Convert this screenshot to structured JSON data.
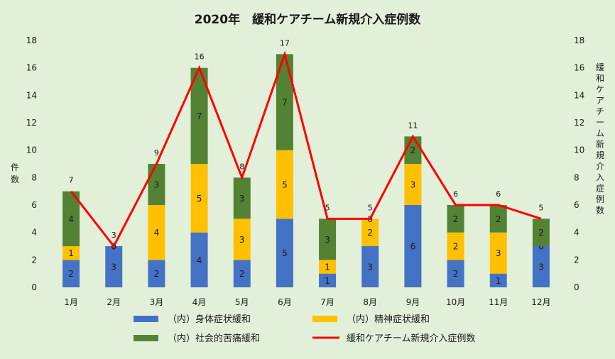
{
  "chart_data": {
    "type": "bar",
    "title": "2020年　緩和ケアチーム新規介入症例数",
    "ylabel": "件数",
    "y2label": "緩和ケアチーム新規介入症例数",
    "ylim": [
      0,
      18
    ],
    "yticks": [
      0,
      2,
      4,
      6,
      8,
      10,
      12,
      14,
      16,
      18
    ],
    "categories": [
      "1月",
      "2月",
      "3月",
      "4月",
      "5月",
      "6月",
      "7月",
      "8月",
      "9月",
      "10月",
      "11月",
      "12月"
    ],
    "series": [
      {
        "name": "（内）身体症状緩和",
        "color": "#4472c4",
        "values": [
          2,
          3,
          2,
          4,
          2,
          5,
          1,
          3,
          6,
          2,
          1,
          3
        ]
      },
      {
        "name": "（内）精神症状緩和",
        "color": "#ffc000",
        "values": [
          1,
          0,
          4,
          5,
          3,
          5,
          1,
          2,
          3,
          2,
          3,
          0
        ]
      },
      {
        "name": "（内）社会的苦痛緩和",
        "color": "#548235",
        "values": [
          4,
          0,
          3,
          7,
          3,
          7,
          3,
          0,
          2,
          2,
          2,
          2
        ]
      }
    ],
    "line": {
      "name": "緩和ケアチーム新規介入症例数",
      "color": "#ff0000",
      "values": [
        7,
        3,
        9,
        16,
        8,
        17,
        5,
        5,
        11,
        6,
        6,
        5
      ]
    },
    "legend_position": "bottom"
  }
}
